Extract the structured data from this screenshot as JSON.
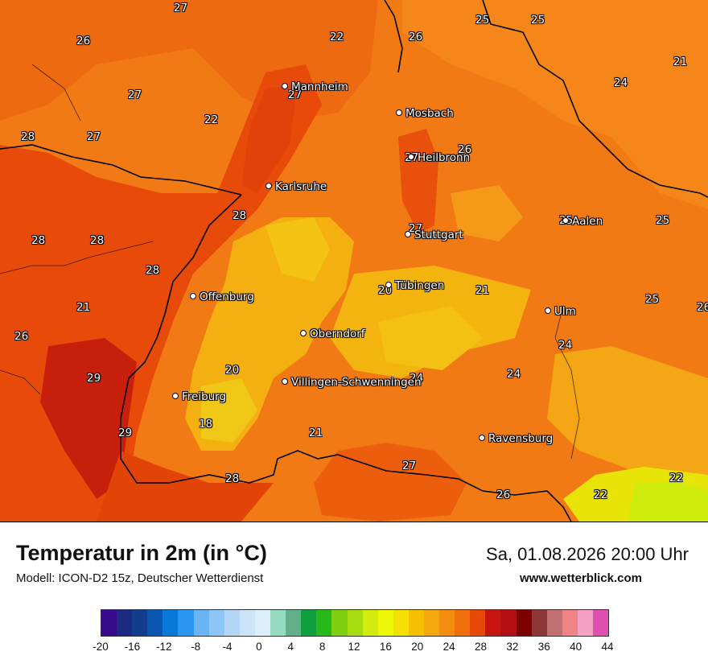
{
  "map": {
    "cities": [
      {
        "name": "Mannheim"
      },
      {
        "name": "Mosbach"
      },
      {
        "name": "Heilbronn"
      },
      {
        "name": "Karlsruhe"
      },
      {
        "name": "Aalen"
      },
      {
        "name": "Stuttgart"
      },
      {
        "name": "Tübingen"
      },
      {
        "name": "Offenburg"
      },
      {
        "name": "Ulm"
      },
      {
        "name": "Oberndorf"
      },
      {
        "name": "Villingen-Schwenningen"
      },
      {
        "name": "Freiburg"
      },
      {
        "name": "Ravensburg"
      }
    ],
    "temperature_labels": [
      "27",
      "26",
      "22",
      "26",
      "25",
      "25",
      "21",
      "24",
      "27",
      "27",
      "22",
      "28",
      "27",
      "26",
      "27",
      "28",
      "28",
      "28",
      "25",
      "25",
      "27",
      "20",
      "21",
      "21",
      "28",
      "26",
      "25",
      "26",
      "24",
      "24",
      "24",
      "29",
      "20",
      "18",
      "29",
      "21",
      "27",
      "28",
      "26",
      "22",
      "22"
    ]
  },
  "footer": {
    "title": "Temperatur in 2m (in °C)",
    "model": "Modell: ICON-D2 15z, Deutscher Wetterdienst",
    "datetime": "Sa, 01.08.2026 20:00 Uhr",
    "website": "www.wetterblick.com"
  },
  "legend": {
    "ticks": [
      "-20",
      "-16",
      "-12",
      "-8",
      "-4",
      "0",
      "4",
      "8",
      "12",
      "16",
      "20",
      "24",
      "28",
      "32",
      "36",
      "40",
      "44"
    ],
    "colors": [
      "#3a0a8c",
      "#1c2a80",
      "#123c8c",
      "#0a55b0",
      "#0a78d8",
      "#2a96f0",
      "#6ab4f4",
      "#8cc6f6",
      "#b4d6f6",
      "#cce4f8",
      "#dceefa",
      "#96dcc0",
      "#64b08a",
      "#10a040",
      "#28b818",
      "#7ed010",
      "#a8dc10",
      "#d2ec10",
      "#ecf804",
      "#f4e004",
      "#f4c000",
      "#f4a810",
      "#f48c10",
      "#f06e0c",
      "#e84808",
      "#c81410",
      "#b41014",
      "#7c0000",
      "#8c3838",
      "#c07070",
      "#f08484",
      "#f4a0c4",
      "#e050b0"
    ]
  }
}
